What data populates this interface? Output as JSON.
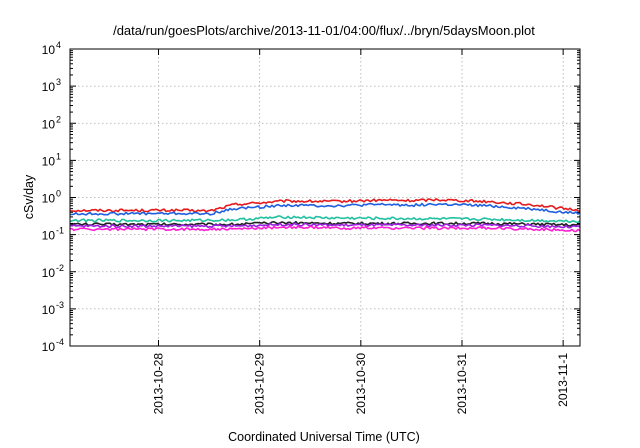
{
  "chart_data": {
    "type": "line",
    "title": "/data/run/goesPlots/archive/2013-11-01/04:00/flux/../bryn/5daysMoon.plot",
    "xlabel": "Coordinated Universal Time (UTC)",
    "ylabel": "cSv/day",
    "yscale": "log",
    "ylim": [
      0.0001,
      10000
    ],
    "xlim": [
      "2013-10-27 03:00",
      "2013-11-01 04:00"
    ],
    "grid": true,
    "y_ticks": [
      {
        "base": "10",
        "exp": "-4",
        "value": 0.0001
      },
      {
        "base": "10",
        "exp": "-3",
        "value": 0.001
      },
      {
        "base": "10",
        "exp": "-2",
        "value": 0.01
      },
      {
        "base": "10",
        "exp": "-1",
        "value": 0.1
      },
      {
        "base": "10",
        "exp": "0",
        "value": 1
      },
      {
        "base": "10",
        "exp": "1",
        "value": 10
      },
      {
        "base": "10",
        "exp": "2",
        "value": 100
      },
      {
        "base": "10",
        "exp": "3",
        "value": 1000
      },
      {
        "base": "10",
        "exp": "4",
        "value": 10000
      }
    ],
    "x_ticks": [
      {
        "label": "2013-10-28",
        "date": "2013-10-28 00:00"
      },
      {
        "label": "2013-10-29",
        "date": "2013-10-29 00:00"
      },
      {
        "label": "2013-10-30",
        "date": "2013-10-30 00:00"
      },
      {
        "label": "2013-10-31",
        "date": "2013-10-31 00:00"
      },
      {
        "label": "2013-11-1",
        "date": "2013-11-01 00:00"
      }
    ],
    "series": [
      {
        "color": "#e41a1c",
        "x": [
          "2013-10-27 03:00",
          "2013-10-27 18:00",
          "2013-10-28 06:00",
          "2013-10-28 12:00",
          "2013-10-28 18:00",
          "2013-10-29 06:00",
          "2013-10-29 18:00",
          "2013-10-30 06:00",
          "2013-10-30 12:00",
          "2013-10-30 18:00",
          "2013-10-31 06:00",
          "2013-10-31 18:00",
          "2013-11-01 00:00",
          "2013-11-01 04:00"
        ],
        "values": [
          0.45,
          0.45,
          0.45,
          0.43,
          0.65,
          0.8,
          0.78,
          0.85,
          0.82,
          0.88,
          0.78,
          0.62,
          0.5,
          0.46
        ]
      },
      {
        "color": "#1f5fe0",
        "x": [
          "2013-10-27 03:00",
          "2013-10-27 18:00",
          "2013-10-28 06:00",
          "2013-10-28 12:00",
          "2013-10-28 18:00",
          "2013-10-29 06:00",
          "2013-10-29 18:00",
          "2013-10-30 06:00",
          "2013-10-30 12:00",
          "2013-10-30 18:00",
          "2013-10-31 06:00",
          "2013-10-31 18:00",
          "2013-11-01 00:00",
          "2013-11-01 04:00"
        ],
        "values": [
          0.36,
          0.37,
          0.37,
          0.36,
          0.5,
          0.62,
          0.6,
          0.65,
          0.62,
          0.66,
          0.6,
          0.48,
          0.4,
          0.38
        ]
      },
      {
        "color": "#20c0a0",
        "x": [
          "2013-10-27 03:00",
          "2013-10-28 06:00",
          "2013-10-28 18:00",
          "2013-10-29 06:00",
          "2013-10-29 18:00",
          "2013-10-30 12:00",
          "2013-10-31 06:00",
          "2013-10-31 18:00",
          "2013-11-01 04:00"
        ],
        "values": [
          0.24,
          0.24,
          0.25,
          0.3,
          0.28,
          0.27,
          0.26,
          0.24,
          0.23
        ]
      },
      {
        "color": "#222222",
        "x": [
          "2013-10-27 03:00",
          "2013-10-28 06:00",
          "2013-10-28 18:00",
          "2013-10-29 06:00",
          "2013-10-29 18:00",
          "2013-10-30 12:00",
          "2013-10-31 06:00",
          "2013-10-31 18:00",
          "2013-11-01 04:00"
        ],
        "values": [
          0.19,
          0.19,
          0.19,
          0.21,
          0.2,
          0.2,
          0.2,
          0.19,
          0.18
        ]
      },
      {
        "color": "#9b1fe0",
        "x": [
          "2013-10-27 03:00",
          "2013-10-28 06:00",
          "2013-10-28 18:00",
          "2013-10-29 06:00",
          "2013-10-29 18:00",
          "2013-10-30 12:00",
          "2013-10-31 06:00",
          "2013-10-31 18:00",
          "2013-11-01 04:00"
        ],
        "values": [
          0.17,
          0.17,
          0.17,
          0.19,
          0.18,
          0.18,
          0.18,
          0.17,
          0.16
        ]
      },
      {
        "color": "#ff1fd0",
        "x": [
          "2013-10-27 03:00",
          "2013-10-28 06:00",
          "2013-10-28 18:00",
          "2013-10-29 06:00",
          "2013-10-29 18:00",
          "2013-10-30 12:00",
          "2013-10-31 06:00",
          "2013-10-31 18:00",
          "2013-11-01 04:00"
        ],
        "values": [
          0.14,
          0.14,
          0.14,
          0.16,
          0.15,
          0.15,
          0.15,
          0.14,
          0.13
        ]
      }
    ]
  }
}
